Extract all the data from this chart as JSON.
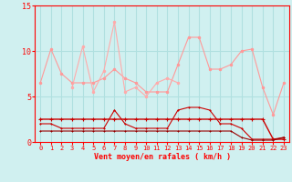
{
  "x": [
    0,
    1,
    2,
    3,
    4,
    5,
    6,
    7,
    8,
    9,
    10,
    11,
    12,
    13,
    14,
    15,
    16,
    17,
    18,
    19,
    20,
    21,
    22,
    23
  ],
  "line1": [
    6.5,
    10.2,
    7.5,
    6.5,
    6.5,
    6.5,
    7,
    8,
    7,
    6.5,
    5.5,
    5.5,
    5.5,
    8.5,
    11.5,
    11.5,
    8,
    8,
    8.5,
    10,
    10.2,
    6,
    3,
    6.5
  ],
  "line2_start": 3,
  "line2": [
    6,
    10.5,
    5.5,
    7.8,
    13.2,
    5.5,
    6,
    5,
    6.5,
    7,
    6.5,
    null,
    null,
    null,
    null,
    null,
    null,
    null,
    null,
    null,
    null
  ],
  "line3": [
    2.5,
    2.5,
    2.5,
    2.5,
    2.5,
    2.5,
    2.5,
    2.5,
    2.5,
    2.5,
    2.5,
    2.5,
    2.5,
    2.5,
    2.5,
    2.5,
    2.5,
    2.5,
    2.5,
    2.5,
    2.5,
    2.5,
    0.3,
    0.3
  ],
  "line4": [
    2,
    2,
    1.5,
    1.5,
    1.5,
    1.5,
    1.5,
    3.5,
    2,
    1.5,
    1.5,
    1.5,
    1.5,
    3.5,
    3.8,
    3.8,
    3.5,
    2,
    2,
    1.5,
    0.3,
    0.3,
    0.3,
    0.5
  ],
  "line5": [
    1.2,
    1.2,
    1.2,
    1.2,
    1.2,
    1.2,
    1.2,
    1.2,
    1.2,
    1.2,
    1.2,
    1.2,
    1.2,
    1.2,
    1.2,
    1.2,
    1.2,
    1.2,
    1.2,
    0.5,
    0.2,
    0.2,
    0.2,
    0.5
  ],
  "ylim": [
    0,
    15
  ],
  "xlim": [
    -0.5,
    23.5
  ],
  "xlabel": "Vent moyen/en rafales ( km/h )",
  "bg_color": "#d0f0f0",
  "grid_color": "#b0e0e0",
  "line1_color": "#ff9999",
  "line2_color": "#ffaaaa",
  "line3_color": "#cc0000",
  "line4_color": "#cc0000",
  "line5_color": "#990000",
  "yticks": [
    0,
    5,
    10,
    15
  ],
  "xticks": [
    0,
    1,
    2,
    3,
    4,
    5,
    6,
    7,
    8,
    9,
    10,
    11,
    12,
    13,
    14,
    15,
    16,
    17,
    18,
    19,
    20,
    21,
    22,
    23
  ]
}
